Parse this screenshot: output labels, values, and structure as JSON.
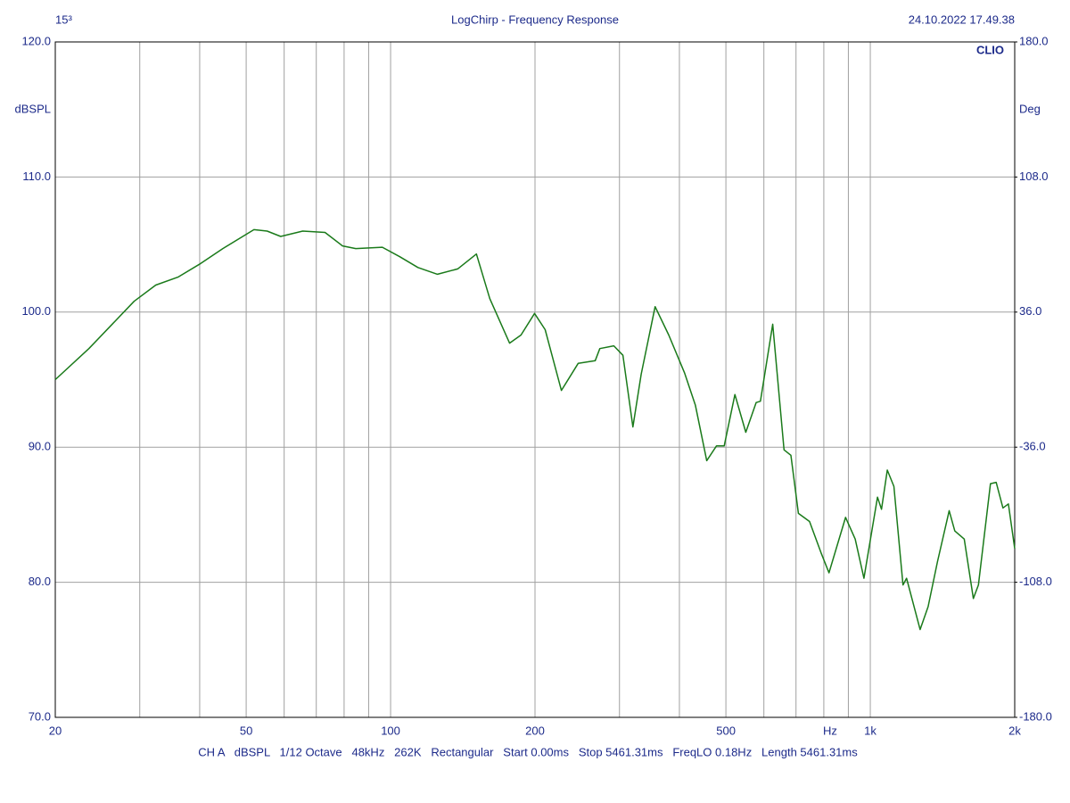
{
  "chart_data": {
    "type": "line",
    "corner_left": "15³",
    "title": "LogChirp - Frequency Response",
    "timestamp": "24.10.2022 17.49.38",
    "brand": "CLIO",
    "ylabel": "dBSPL",
    "y2label": "Deg",
    "footer": "CH A   dBSPL   1/12 Octave   48kHz   262K   Rectangular   Start 0.00ms   Stop 5461.31ms   FreqLO 0.18Hz   Length 5461.31ms",
    "xscale": "log",
    "grid": true,
    "xlim": [
      20,
      2000
    ],
    "xticks": [
      20,
      50,
      100,
      200,
      500,
      {
        "value": 800,
        "label": "Hz"
      },
      {
        "value": 1000,
        "label": "1k"
      },
      {
        "value": 2000,
        "label": "2k"
      }
    ],
    "xminor": [
      30,
      40,
      60,
      70,
      80,
      90,
      300,
      400,
      600,
      700,
      900
    ],
    "ylim": [
      70,
      120
    ],
    "yticks": [
      {
        "value": 70,
        "label": "70.0"
      },
      {
        "value": 80,
        "label": "80.0"
      },
      {
        "value": 90,
        "label": "90.0"
      },
      {
        "value": 100,
        "label": "100.0"
      },
      {
        "value": 110,
        "label": "110.0"
      },
      {
        "value": 120,
        "label": "120.0"
      }
    ],
    "y2lim": [
      -180,
      180
    ],
    "y2ticks": [
      {
        "value": -180,
        "label": "-180.0"
      },
      {
        "value": -108,
        "label": "-108.0"
      },
      {
        "value": -36,
        "label": "-36.0"
      },
      {
        "value": 36,
        "label": "36.0"
      },
      {
        "value": 108,
        "label": "108.0"
      },
      {
        "value": 180,
        "label": "180.0"
      }
    ],
    "x": [
      20,
      23.5,
      29.2,
      32.4,
      36.1,
      40.2,
      44.7,
      51.9,
      55.3,
      59,
      65.6,
      73,
      79.4,
      84.6,
      96.1,
      104.5,
      114,
      125.2,
      138,
      151,
      161,
      177,
      187,
      199.6,
      210,
      227,
      246,
      267,
      273,
      292,
      305,
      320,
      333,
      356,
      380,
      410,
      432,
      456,
      478,
      496,
      522,
      550,
      578,
      590,
      626,
      661,
      683,
      708,
      747,
      789,
      820,
      888,
      930,
      970,
      1035,
      1055,
      1085,
      1120,
      1170,
      1190,
      1270,
      1320,
      1380,
      1460,
      1500,
      1570,
      1640,
      1680,
      1780,
      1830,
      1890,
      1940,
      2000
    ],
    "series": [
      {
        "color": "#1a7a1a",
        "values": [
          95.0,
          97.3,
          100.8,
          102.0,
          102.6,
          103.6,
          104.7,
          106.1,
          106.0,
          105.6,
          106.0,
          105.9,
          104.9,
          104.7,
          104.8,
          104.1,
          103.3,
          102.8,
          103.2,
          104.3,
          101.0,
          97.7,
          98.3,
          99.9,
          98.7,
          94.2,
          96.2,
          96.4,
          97.3,
          97.5,
          96.8,
          91.5,
          95.4,
          100.4,
          98.3,
          95.5,
          93.1,
          89.0,
          90.1,
          90.1,
          93.9,
          91.1,
          93.3,
          93.4,
          99.1,
          89.8,
          89.4,
          85.1,
          84.5,
          82.2,
          80.7,
          84.8,
          83.2,
          80.3,
          86.3,
          85.4,
          88.3,
          87.1,
          79.8,
          80.3,
          76.5,
          78.2,
          81.5,
          85.3,
          83.8,
          83.2,
          78.8,
          79.8,
          87.3,
          87.4,
          85.5,
          85.8,
          82.5
        ]
      }
    ]
  }
}
